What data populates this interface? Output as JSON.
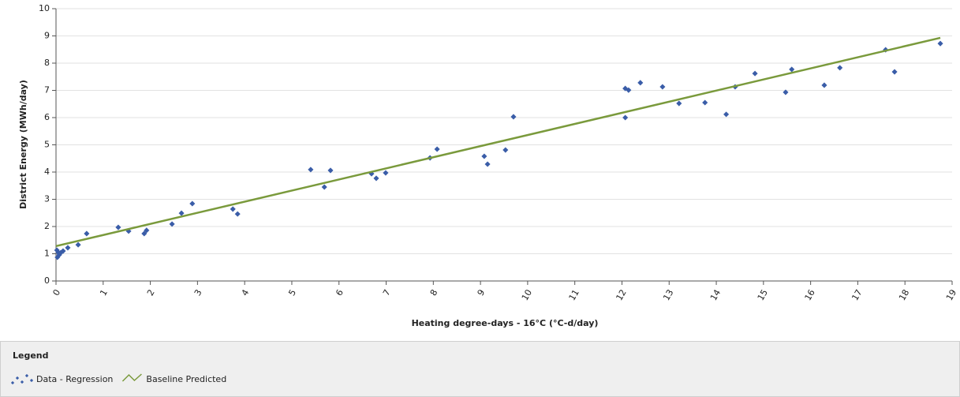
{
  "chart_data": {
    "type": "scatter",
    "x_label": "Heating degree-days - 16°C (°C-d/day)",
    "y_label": "District Energy (MWh/day)",
    "legend_title": "Legend",
    "xlim": [
      0,
      19
    ],
    "ylim": [
      0,
      10
    ],
    "xticks": [
      0,
      1,
      2,
      3,
      4,
      5,
      6,
      7,
      8,
      9,
      10,
      11,
      12,
      13,
      14,
      15,
      16,
      17,
      18,
      19
    ],
    "yticks": [
      0,
      1,
      2,
      3,
      4,
      5,
      6,
      7,
      8,
      9,
      10
    ],
    "grid": true,
    "series": [
      {
        "name": "Data - Regression",
        "type": "scatter",
        "color": "#3a5da8",
        "x": [
          0.03,
          0.07,
          0.02,
          0.05,
          0.1,
          0.15,
          0.25,
          0.47,
          0.65,
          1.32,
          1.54,
          1.87,
          1.92,
          2.46,
          2.66,
          2.89,
          3.75,
          3.85,
          5.4,
          5.69,
          5.82,
          6.69,
          6.79,
          6.99,
          7.93,
          8.08,
          9.08,
          9.15,
          9.53,
          9.7,
          12.07,
          12.14,
          12.07,
          12.39,
          12.86,
          13.21,
          13.76,
          14.21,
          14.4,
          14.82,
          15.47,
          15.6,
          16.29,
          16.62,
          17.59,
          17.78,
          18.75
        ],
        "values": [
          0.87,
          0.96,
          1.13,
          1.04,
          1.04,
          1.1,
          1.22,
          1.33,
          1.74,
          1.97,
          1.83,
          1.74,
          1.86,
          2.09,
          2.49,
          2.84,
          2.64,
          2.46,
          4.09,
          3.45,
          4.06,
          3.94,
          3.77,
          3.97,
          4.52,
          4.84,
          4.58,
          4.29,
          4.81,
          6.03,
          7.07,
          7.01,
          6.0,
          7.28,
          7.13,
          6.52,
          6.55,
          6.12,
          7.13,
          7.62,
          6.93,
          7.77,
          7.19,
          7.83,
          8.49,
          7.68,
          8.72
        ]
      },
      {
        "name": "Baseline Predicted",
        "type": "line",
        "color": "#7a9a3c",
        "x": [
          0,
          18.75
        ],
        "values": [
          1.28,
          8.93
        ]
      }
    ]
  }
}
